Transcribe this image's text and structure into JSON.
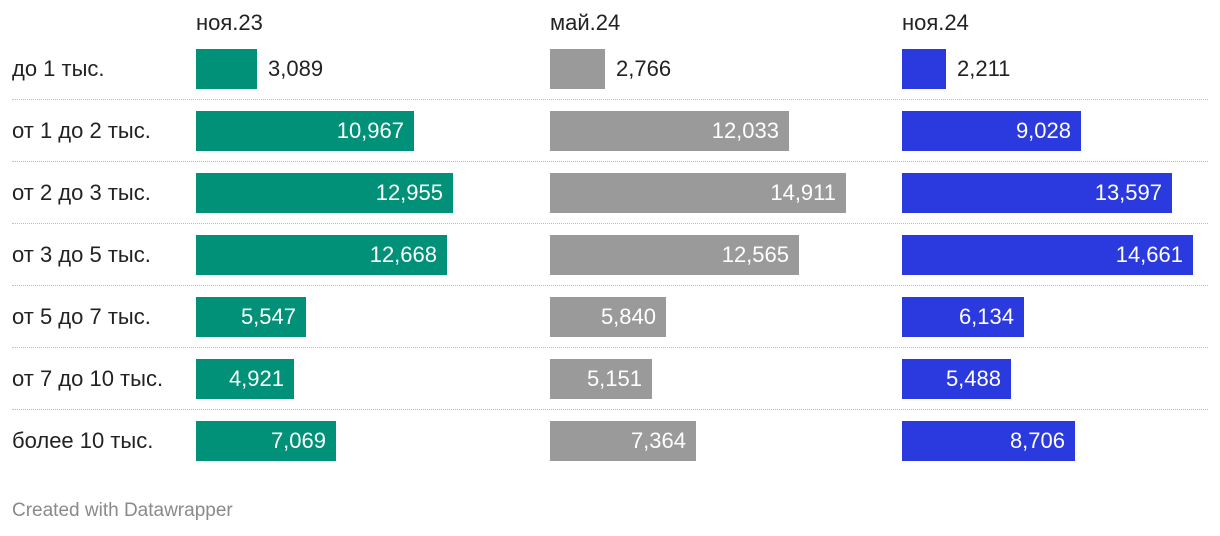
{
  "chart_data": {
    "type": "bar",
    "orientation": "horizontal",
    "layout": "small-multiples",
    "categories": [
      "до 1 тыс.",
      "от 1 до 2 тыс.",
      "от 2 до 3 тыс.",
      "от 3 до 5 тыс.",
      "от 5 до 7 тыс.",
      "от 7 до 10 тыс.",
      "более 10 тыс."
    ],
    "series": [
      {
        "name": "ноя.23",
        "color": "#009178",
        "values": [
          3089,
          10967,
          12955,
          12668,
          5547,
          4921,
          7069
        ]
      },
      {
        "name": "май.24",
        "color": "#9a9a9a",
        "values": [
          2766,
          12033,
          14911,
          12565,
          5840,
          5151,
          7364
        ]
      },
      {
        "name": "ноя.24",
        "color": "#2b3adf",
        "values": [
          2211,
          9028,
          13597,
          14661,
          6134,
          5488,
          8706
        ]
      }
    ],
    "value_labels": [
      [
        "3,089",
        "10,967",
        "12,955",
        "12,668",
        "5,547",
        "4,921",
        "7,069"
      ],
      [
        "2,766",
        "12,033",
        "14,911",
        "12,565",
        "5,840",
        "5,151",
        "7,364"
      ],
      [
        "2,211",
        "9,028",
        "13,597",
        "14,661",
        "6,134",
        "5,488",
        "8,706"
      ]
    ],
    "xlim": [
      0,
      14911
    ],
    "grid": false,
    "legend": "column headers"
  },
  "footer": {
    "credit": "Created with Datawrapper"
  }
}
